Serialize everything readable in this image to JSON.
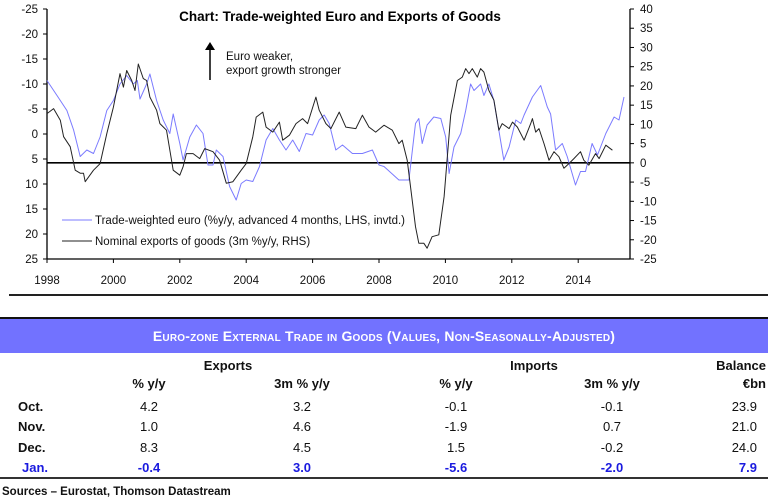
{
  "chart_data": {
    "type": "line",
    "title": "Chart: Trade-weighted Euro and Exports of Goods",
    "annotation": [
      "Euro weaker,",
      "export growth stronger"
    ],
    "x_ticks": [
      "1998",
      "2000",
      "2002",
      "2004",
      "2006",
      "2008",
      "2010",
      "2012",
      "2014"
    ],
    "left_axis": {
      "label": "LHS, inverted",
      "range": [
        -25,
        25
      ],
      "inverted": true,
      "ticks": [
        "-25",
        "-20",
        "-15",
        "-10",
        "-5",
        "0",
        "5",
        "10",
        "15",
        "20",
        "25"
      ]
    },
    "right_axis": {
      "label": "RHS",
      "range": [
        -25,
        40
      ],
      "ticks": [
        "40",
        "35",
        "30",
        "25",
        "20",
        "15",
        "10",
        "5",
        "0",
        "-5",
        "-10",
        "-15",
        "-20",
        "-25"
      ]
    },
    "reference_line_rhs": 0,
    "legend_placement": "bottom-left",
    "series": [
      {
        "name": "Trade-weighted euro (%y/y, advanced 4 months, LHS, invtd.)",
        "axis": "left",
        "color": "#7b7bff",
        "x": [
          1998.0,
          1998.3,
          1998.6,
          1998.8,
          1999.0,
          1999.2,
          1999.4,
          1999.6,
          1999.8,
          2000.0,
          2000.2,
          2000.4,
          2000.6,
          2000.72,
          2000.8,
          2001.0,
          2001.1,
          2001.3,
          2001.5,
          2001.7,
          2001.8,
          2002.0,
          2002.1,
          2002.3,
          2002.5,
          2002.7,
          2002.85,
          2003.0,
          2003.1,
          2003.3,
          2003.5,
          2003.7,
          2003.85,
          2004.0,
          2004.2,
          2004.4,
          2004.6,
          2004.8,
          2005.0,
          2005.2,
          2005.4,
          2005.6,
          2005.8,
          2006.0,
          2006.2,
          2006.35,
          2006.5,
          2006.7,
          2006.9,
          2007.2,
          2007.5,
          2007.8,
          2008.0,
          2008.15,
          2008.6,
          2008.9,
          2009.1,
          2009.2,
          2009.3,
          2009.45,
          2009.65,
          2009.86,
          2010.01,
          2010.11,
          2010.26,
          2010.46,
          2010.61,
          2010.76,
          2010.86,
          2011.06,
          2011.16,
          2011.31,
          2011.46,
          2011.76,
          2011.92,
          2012.12,
          2012.27,
          2012.37,
          2012.62,
          2012.87,
          2013.07,
          2013.17,
          2013.32,
          2013.52,
          2013.67,
          2013.92,
          2014.07,
          2014.22,
          2014.42,
          2014.58,
          2014.83,
          2015.08,
          2015.23,
          2015.38
        ],
        "y": [
          -10.7,
          -7.7,
          -4.7,
          -0.8,
          4.5,
          3.2,
          3.9,
          0.6,
          -4.7,
          -6.7,
          -10,
          -11.7,
          -10,
          -10.7,
          -7,
          -10,
          -12,
          -6.7,
          -2.8,
          -0.1,
          -4,
          1.9,
          5.2,
          0.6,
          -1.8,
          -0.1,
          6.2,
          6.2,
          3.2,
          4.5,
          10.5,
          13.2,
          9.9,
          9.2,
          9.5,
          6.5,
          1.2,
          -1.1,
          1.2,
          3.2,
          1.2,
          3.5,
          -0.1,
          0.2,
          -2.8,
          -3.8,
          -2.1,
          3.2,
          2.2,
          3.9,
          3.9,
          3.2,
          6.2,
          6.5,
          9.2,
          9.2,
          -2.1,
          -3.1,
          1.9,
          -1.8,
          -3.4,
          -3.1,
          0.6,
          7.9,
          2.6,
          -0.1,
          -4.7,
          -10,
          -8.7,
          -10,
          -7.7,
          -10,
          -6.7,
          5.2,
          2.6,
          -2.8,
          -2.1,
          -3.8,
          -7.4,
          -9.7,
          -5.4,
          -4,
          3.2,
          1.9,
          4.5,
          10.2,
          7.5,
          7.5,
          1.9,
          4.2,
          -0.1,
          -3.4,
          -2.8,
          -7.4
        ]
      },
      {
        "name": "Nominal exports of goods (3m %y/y, RHS)",
        "axis": "right",
        "color": "#222222",
        "x": [
          1998.0,
          1998.2,
          1998.4,
          1998.5,
          1998.7,
          1998.85,
          1999.0,
          1999.1,
          1999.15,
          1999.4,
          1999.6,
          1999.8,
          2000.0,
          2000.2,
          2000.3,
          2000.4,
          2000.55,
          2000.65,
          2000.75,
          2000.9,
          2001.0,
          2001.1,
          2001.3,
          2001.4,
          2001.6,
          2001.8,
          2002.0,
          2002.1,
          2002.2,
          2002.4,
          2002.6,
          2002.75,
          2003.0,
          2003.2,
          2003.4,
          2003.6,
          2003.85,
          2004.0,
          2004.2,
          2004.3,
          2004.5,
          2004.6,
          2004.8,
          2005.0,
          2005.1,
          2005.3,
          2005.5,
          2005.7,
          2005.85,
          2006.1,
          2006.2,
          2006.4,
          2006.55,
          2006.8,
          2007.0,
          2007.3,
          2007.5,
          2007.7,
          2007.9,
          2008.15,
          2008.4,
          2008.6,
          2008.7,
          2008.85,
          2009.0,
          2009.1,
          2009.2,
          2009.35,
          2009.45,
          2009.6,
          2009.8,
          2009.96,
          2010.16,
          2010.36,
          2010.51,
          2010.61,
          2010.71,
          2010.81,
          2010.96,
          2011.06,
          2011.16,
          2011.31,
          2011.46,
          2011.61,
          2011.71,
          2011.92,
          2012.02,
          2012.17,
          2012.37,
          2012.57,
          2012.62,
          2012.72,
          2012.82,
          2012.97,
          2013.12,
          2013.27,
          2013.42,
          2013.57,
          2013.72,
          2013.87,
          2014.07,
          2014.17,
          2014.32,
          2014.52,
          2014.63,
          2014.83,
          2015.03
        ],
        "y": [
          12.8,
          14.1,
          11.1,
          6.8,
          4.2,
          -1.9,
          -2.7,
          -2.7,
          -4.9,
          -1.9,
          -0.2,
          7.6,
          14.5,
          23.2,
          19.7,
          24,
          21.4,
          18.8,
          25.7,
          21.9,
          21.4,
          17.1,
          13.7,
          10.2,
          8.5,
          -1.9,
          -3.2,
          -1.0,
          2.4,
          2.4,
          1.1,
          3.7,
          2.9,
          0.7,
          -5.3,
          -4.9,
          -1.9,
          -0.2,
          6.8,
          11.9,
          13.2,
          9.3,
          8.0,
          10.6,
          5.9,
          7.2,
          10.2,
          11.5,
          10.2,
          17.1,
          13.7,
          10.2,
          8.9,
          13.2,
          9.3,
          8.9,
          12.4,
          9.3,
          8.0,
          9.8,
          8.5,
          5.0,
          5.9,
          0.7,
          -9.7,
          -16.6,
          -20.9,
          -20.9,
          -22.2,
          -19.2,
          -18.7,
          -8.8,
          12.4,
          21.4,
          22.3,
          24.5,
          23.2,
          24.5,
          22.3,
          24.5,
          23.6,
          18.8,
          16.3,
          8.5,
          10.2,
          8.9,
          10.6,
          9.3,
          5.9,
          10.2,
          11.5,
          8.0,
          8.9,
          5.0,
          0.7,
          2.9,
          1.6,
          -1.4,
          -0.2,
          1.1,
          2.9,
          0.7,
          -0.6,
          2.4,
          1.1,
          4.6,
          3.3
        ]
      }
    ]
  },
  "table": {
    "title": "Euro-zone External Trade in Goods (Values, Non-Seasonally-Adjusted)",
    "groups": {
      "exports": "Exports",
      "imports": "Imports",
      "balance": "Balance"
    },
    "subheaders": [
      "% y/y",
      "3m % y/y",
      "% y/y",
      "3m % y/y",
      "€bn"
    ],
    "rows": [
      {
        "label": "Oct.",
        "values": [
          "4.2",
          "3.2",
          "-0.1",
          "-0.1",
          "23.9"
        ]
      },
      {
        "label": "Nov.",
        "values": [
          "1.0",
          "4.6",
          "-1.9",
          "0.7",
          "21.0"
        ]
      },
      {
        "label": "Dec.",
        "values": [
          "8.3",
          "4.5",
          "1.5",
          "-0.2",
          "24.0"
        ]
      },
      {
        "label": "Jan.",
        "values": [
          "-0.4",
          "3.0",
          "-5.6",
          "-2.0",
          "7.9"
        ]
      }
    ],
    "header_color": "#7272ff",
    "highlight_color": "#1a1adf"
  },
  "sources": "Sources – Eurostat, Thomson Datastream"
}
